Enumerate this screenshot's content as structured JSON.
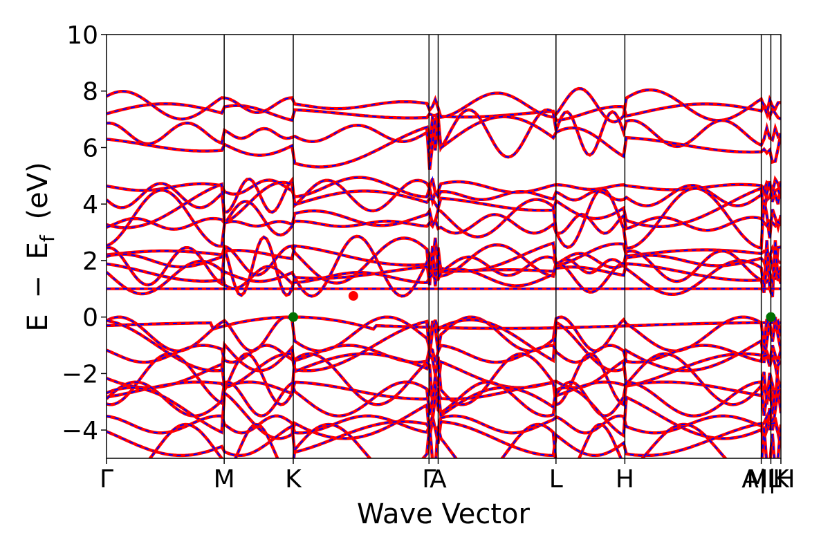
{
  "chart_data": {
    "type": "line",
    "title": "",
    "xlabel": "Wave Vector",
    "ylabel_parts": {
      "E": "E",
      "minus": "−",
      "Ef": "E",
      "Ef_sub": "f",
      "unit": "(eV)"
    },
    "ylim": [
      -5,
      10
    ],
    "yticks": [
      -4,
      -2,
      0,
      2,
      4,
      6,
      8,
      10
    ],
    "ytick_labels": [
      "−4",
      "−2",
      "0",
      "2",
      "4",
      "6",
      "8",
      "10"
    ],
    "x_range": [
      0,
      1
    ],
    "kpoints": [
      {
        "label": "Γ",
        "x": 0.0
      },
      {
        "label": "M",
        "x": 0.1745
      },
      {
        "label": "K",
        "x": 0.2769
      },
      {
        "label": "Γ",
        "x": 0.4782
      },
      {
        "label": "A",
        "x": 0.4918
      },
      {
        "label": "L",
        "x": 0.6665
      },
      {
        "label": "H",
        "x": 0.7686
      },
      {
        "label": "A|L",
        "x": 0.9709
      },
      {
        "label": "M|H",
        "x": 0.9851
      },
      {
        "label": "K",
        "x": 1.0
      }
    ],
    "series_styles": [
      {
        "style": "solid",
        "color": "#ff0000"
      },
      {
        "style": "dashed",
        "color": "#0000ff"
      }
    ],
    "bands": {
      "valence_top": [
        -0.2,
        -0.25,
        0.0,
        -0.3,
        -0.3,
        -0.25,
        0.0,
        -0.3
      ],
      "flat_band": 1.0,
      "cbm_marker": {
        "x": 0.366,
        "y": 0.75,
        "color": "#ff0000"
      },
      "vbm_markers": [
        {
          "x": 0.2769,
          "y": 0.0,
          "color": "#007000"
        },
        {
          "x": 0.9851,
          "y": 0.0,
          "color": "#007000"
        }
      ]
    }
  }
}
